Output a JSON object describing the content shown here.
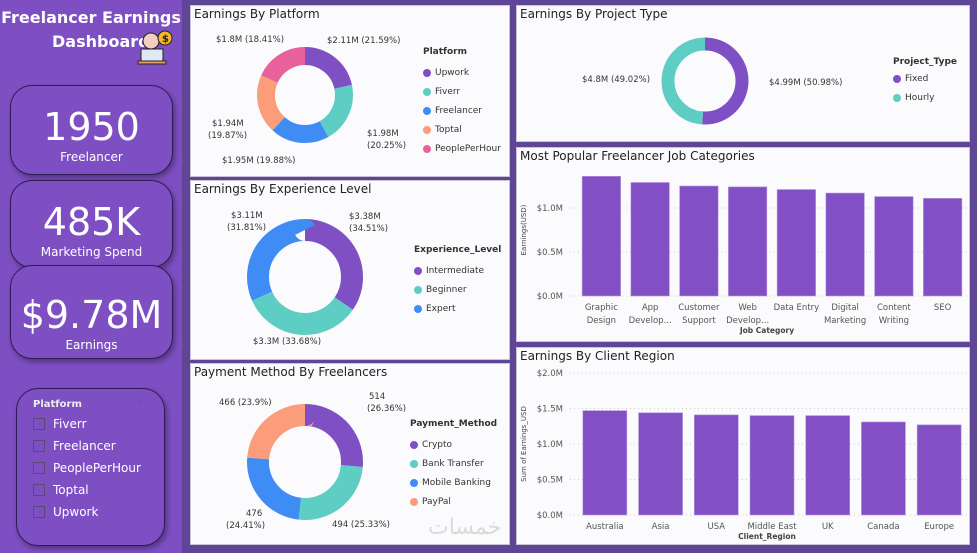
{
  "header": {
    "title_line1": "Freelancer Earnings",
    "title_line2": "Dashboard"
  },
  "kpis": [
    {
      "value": "1950",
      "label": "Freelancer"
    },
    {
      "value": "485K",
      "label": "Marketing Spend"
    },
    {
      "value": "$9.78M",
      "label": "Earnings"
    }
  ],
  "slicer": {
    "title": "Platform",
    "items": [
      "Fiverr",
      "Freelancer",
      "PeoplePerHour",
      "Toptal",
      "Upwork"
    ]
  },
  "platform": {
    "title": "Earnings By Platform",
    "legend_title": "Platform",
    "slices": [
      {
        "name": "Upwork",
        "value": 21.59,
        "label": "$2.11M (21.59%)",
        "color": "#7f4fc4"
      },
      {
        "name": "Fiverr",
        "value": 20.25,
        "label1": "$1.98M",
        "label2": "(20.25%)",
        "color": "#5ecdc4"
      },
      {
        "name": "Freelancer",
        "value": 19.88,
        "label": "$1.95M (19.88%)",
        "color": "#3f8cf5"
      },
      {
        "name": "Toptal",
        "value": 19.87,
        "label1": "$1.94M",
        "label2": "(19.87%)",
        "color": "#fb9c7a"
      },
      {
        "name": "PeoplePerHour",
        "value": 18.41,
        "label": "$1.8M (18.41%)",
        "color": "#e8609c"
      }
    ]
  },
  "experience": {
    "title": "Earnings By Experience Level",
    "legend_title": "Experience_Level",
    "slices": [
      {
        "name": "Intermediate",
        "value": 34.51,
        "label1": "$3.38M",
        "label2": "(34.51%)",
        "color": "#7f4fc4"
      },
      {
        "name": "Beginner",
        "value": 33.68,
        "label": "$3.3M (33.68%)",
        "color": "#5ecdc4"
      },
      {
        "name": "Expert",
        "value": 31.81,
        "label1": "$3.11M",
        "label2": "(31.81%)",
        "color": "#3f8cf5"
      }
    ]
  },
  "payment": {
    "title": "Payment Method By Freelancers",
    "legend_title": "Payment_Method",
    "slices": [
      {
        "name": "Crypto",
        "value": 26.36,
        "label1": "514",
        "label2": "(26.36%)",
        "color": "#7f4fc4"
      },
      {
        "name": "Bank Transfer",
        "value": 25.33,
        "label": "494 (25.33%)",
        "color": "#5ecdc4"
      },
      {
        "name": "Mobile Banking",
        "value": 24.41,
        "label1": "476",
        "label2": "(24.41%)",
        "color": "#3f8cf5"
      },
      {
        "name": "PayPal",
        "value": 23.9,
        "label": "466 (23.9%)",
        "color": "#fb9c7a"
      }
    ]
  },
  "project": {
    "title": "Earnings By Project Type",
    "legend_title": "Project_Type",
    "slices": [
      {
        "name": "Fixed",
        "value": 50.98,
        "label": "$4.99M (50.98%)",
        "color": "#7f4fc4"
      },
      {
        "name": "Hourly",
        "value": 49.02,
        "label": "$4.8M (49.02%)",
        "color": "#5ecdc4"
      }
    ]
  },
  "chart_data": [
    {
      "type": "bar",
      "title": "Most Popular Freelancer Job Categories",
      "xlabel": "Job Category",
      "ylabel": "Earnings(USD)",
      "ylim": [
        0,
        1.5
      ],
      "ticks": [
        "$0.0M",
        "$0.5M",
        "$1.0M"
      ],
      "tick_values": [
        0,
        0.5,
        1.0
      ],
      "categories": [
        [
          "Graphic",
          "Design"
        ],
        [
          "App",
          "Develop..."
        ],
        [
          "Customer",
          "Support"
        ],
        [
          "Web",
          "Develop..."
        ],
        [
          "Data Entry",
          ""
        ],
        [
          "Digital",
          "Marketing"
        ],
        [
          "Content",
          "Writing"
        ],
        [
          "SEO",
          ""
        ]
      ],
      "values": [
        1.36,
        1.29,
        1.25,
        1.24,
        1.21,
        1.17,
        1.13,
        1.11
      ],
      "color": "#8250c4"
    },
    {
      "type": "bar",
      "title": "Earnings By Client Region",
      "xlabel": "Client_Region",
      "ylabel": "Sum of Earnings_USD",
      "ylim": [
        0,
        2.0
      ],
      "ticks": [
        "$0.0M",
        "$0.5M",
        "$1.0M",
        "$1.5M",
        "$2.0M"
      ],
      "tick_values": [
        0,
        0.5,
        1.0,
        1.5,
        2.0
      ],
      "categories": [
        [
          "Australia"
        ],
        [
          "Asia"
        ],
        [
          "USA"
        ],
        [
          "Middle East"
        ],
        [
          "UK"
        ],
        [
          "Canada"
        ],
        [
          "Europe"
        ]
      ],
      "values": [
        1.47,
        1.44,
        1.41,
        1.4,
        1.4,
        1.31,
        1.27
      ],
      "color": "#8250c4"
    }
  ],
  "watermark": "خمسات"
}
